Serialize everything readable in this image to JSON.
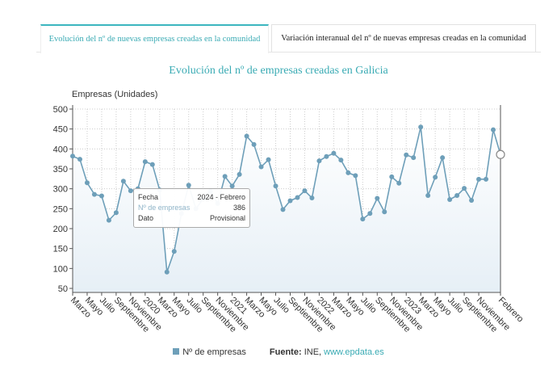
{
  "tabs": [
    {
      "label": "Evolución del nº de nuevas empresas creadas en la comunidad",
      "active": true
    },
    {
      "label": "Variación interanual del nº de nuevas empresas creadas en la comunidad",
      "active": false
    }
  ],
  "colors": {
    "accent": "#3aabb4",
    "series": "#6e9fb9"
  },
  "tooltip": {
    "fecha_label": "Fecha",
    "fecha_value": "2024 - Febrero",
    "n_label": "Nº de empresas",
    "n_value": "386",
    "dato_label": "Dato",
    "dato_value": "Provisional"
  },
  "legend": {
    "series": "Nº de empresas",
    "source_label": "Fuente:",
    "source_text": "INE,",
    "source_link": "www.epdata.es"
  },
  "chart_data": {
    "type": "area",
    "title": "Evolución del nº de empresas creadas en Galicia",
    "ylabel": "Empresas (Unidades)",
    "xlabel": "",
    "ylim": [
      50,
      500
    ],
    "yticks": [
      50,
      100,
      150,
      200,
      250,
      300,
      350,
      400,
      450,
      500
    ],
    "grid": true,
    "legend": "bottom",
    "x_start": "2019 - Marzo",
    "x_end": "2024 - Febrero",
    "xtick_labels": [
      "Marzo",
      "Mayo",
      "Julio",
      "Septiembre",
      "Noviembre",
      "2020",
      "Marzo",
      "Mayo",
      "Julio",
      "Septiembre",
      "Noviembre",
      "2021",
      "Marzo",
      "Mayo",
      "Julio",
      "Septiembre",
      "Noviembre",
      "2022",
      "Marzo",
      "Mayo",
      "Julio",
      "Septiembre",
      "Noviembre",
      "2023",
      "Marzo",
      "Mayo",
      "Julio",
      "Septiembre",
      "Noviembre",
      "Febrero"
    ],
    "series": [
      {
        "name": "Nº de empresas",
        "values": [
          382,
          374,
          315,
          286,
          282,
          221,
          240,
          319,
          295,
          300,
          368,
          361,
          297,
          91,
          143,
          238,
          309,
          250,
          275,
          294,
          263,
          331,
          307,
          336,
          432,
          411,
          355,
          373,
          307,
          248,
          270,
          278,
          295,
          277,
          370,
          381,
          389,
          372,
          340,
          333,
          224,
          238,
          276,
          242,
          330,
          314,
          385,
          378,
          455,
          283,
          329,
          378,
          273,
          283,
          301,
          271,
          324,
          324,
          448,
          386
        ]
      }
    ]
  }
}
